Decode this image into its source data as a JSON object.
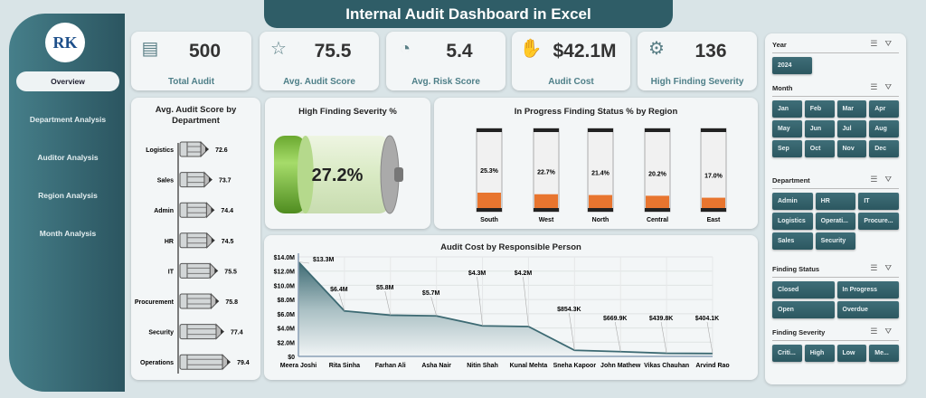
{
  "title": "Internal Audit Dashboard in Excel",
  "logo_text": "RK",
  "nav": [
    {
      "label": "Overview",
      "active": true
    },
    {
      "label": "Department Analysis"
    },
    {
      "label": "Auditor Analysis"
    },
    {
      "label": "Region Analysis"
    },
    {
      "label": "Month Analysis"
    }
  ],
  "kpis": [
    {
      "value": "500",
      "label": "Total Audit",
      "icon": "document-check-icon"
    },
    {
      "value": "75.5",
      "label": "Avg. Audit Score",
      "icon": "rating-person-icon"
    },
    {
      "value": "5.4",
      "label": "Avg. Risk Score",
      "icon": "risk-gauge-icon"
    },
    {
      "value": "$42.1M",
      "label": "Audit Cost",
      "icon": "cost-hand-icon"
    },
    {
      "value": "136",
      "label": "High Finding Severity",
      "icon": "severity-badge-icon"
    }
  ],
  "chart_data": [
    {
      "type": "bar",
      "title": "Avg. Audit Score by Department",
      "categories": [
        "Logistics",
        "Sales",
        "Admin",
        "HR",
        "IT",
        "Procurement",
        "Security",
        "Operations"
      ],
      "values": [
        72.6,
        73.7,
        74.4,
        74.5,
        75.5,
        75.8,
        77.4,
        79.4
      ],
      "labels": [
        "72.6",
        "73.7",
        "74.4",
        "74.5",
        "75.5",
        "75.8",
        "77.4",
        "79.4"
      ],
      "orientation": "horizontal"
    },
    {
      "type": "gauge",
      "title": "High Finding Severity %",
      "value": 27.2,
      "label": "27.2%",
      "color": "#7cc243"
    },
    {
      "type": "bar",
      "title": "In Progress Finding Status % by Region",
      "categories": [
        "South",
        "West",
        "North",
        "Central",
        "East"
      ],
      "values": [
        25.3,
        22.7,
        21.4,
        20.2,
        17.0
      ],
      "labels": [
        "25.3%",
        "22.7%",
        "21.4%",
        "20.2%",
        "17.0%"
      ],
      "color": "#e8752f"
    },
    {
      "type": "area",
      "title": "Audit Cost by Responsible Person",
      "categories": [
        "Meera Joshi",
        "Rita Sinha",
        "Farhan Ali",
        "Asha Nair",
        "Nitin Shah",
        "Kunal Mehta",
        "Sneha Kapoor",
        "John Mathew",
        "Vikas Chauhan",
        "Arvind Rao"
      ],
      "values": [
        13.3,
        6.4,
        5.8,
        5.7,
        4.3,
        4.2,
        0.8543,
        0.6699,
        0.4398,
        0.4041
      ],
      "labels": [
        "$13.3M",
        "$6.4M",
        "$5.8M",
        "$5.7M",
        "$4.3M",
        "$4.2M",
        "$854.3K",
        "$669.9K",
        "$439.8K",
        "$404.1K"
      ],
      "ylim": [
        0,
        14
      ],
      "yticks": [
        "$0",
        "$2.0M",
        "$4.0M",
        "$6.0M",
        "$8.0M",
        "$10.0M",
        "$12.0M",
        "$14.0M"
      ],
      "grid": true,
      "color": "#3d6a73"
    }
  ],
  "slicers": [
    {
      "title": "Year",
      "items": [
        "2024"
      ]
    },
    {
      "title": "Month",
      "items": [
        "Jan",
        "Feb",
        "Mar",
        "Apr",
        "May",
        "Jun",
        "Jul",
        "Aug",
        "Sep",
        "Oct",
        "Nov",
        "Dec"
      ]
    },
    {
      "title": "Department",
      "items": [
        "Admin",
        "HR",
        "IT",
        "Logistics",
        "Operati...",
        "Procure...",
        "Sales",
        "Security"
      ]
    },
    {
      "title": "Finding Status",
      "items": [
        "Closed",
        "In Progress",
        "Open",
        "Overdue"
      ]
    },
    {
      "title": "Finding Severity",
      "items": [
        "Criti...",
        "High",
        "Low",
        "Me..."
      ]
    }
  ]
}
